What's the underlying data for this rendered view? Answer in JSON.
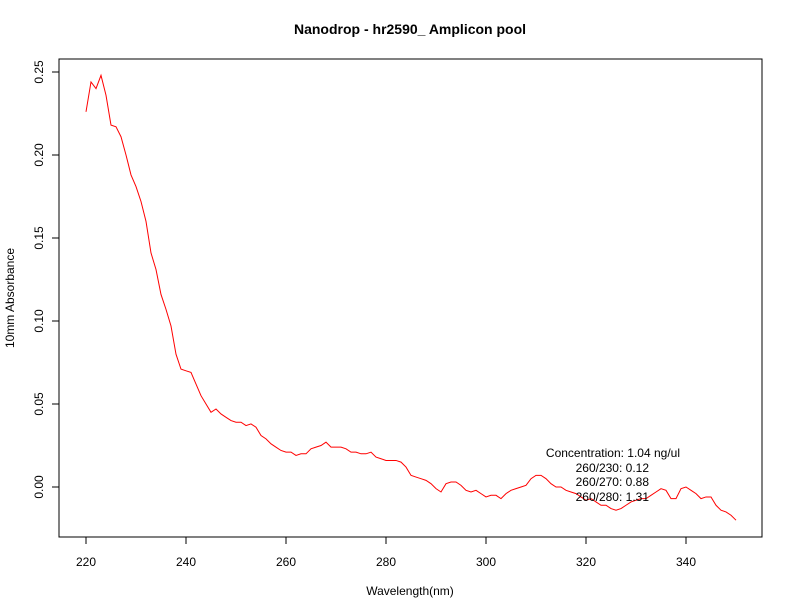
{
  "chart_data": {
    "type": "line",
    "title": "Nanodrop - hr2590_ Amplicon pool",
    "xlabel": "Wavelength(nm)",
    "ylabel": "10mm Absorbance",
    "xlim": [
      220,
      350
    ],
    "ylim": [
      -0.03,
      0.26
    ],
    "xticks": [
      "220",
      "240",
      "260",
      "280",
      "300",
      "320",
      "340"
    ],
    "yticks": [
      "0.00",
      "0.05",
      "0.10",
      "0.15",
      "0.20",
      "0.25"
    ],
    "grid": false,
    "series": [
      {
        "color": "#ff0000",
        "x": [
          220,
          221,
          222,
          223,
          224,
          225,
          226,
          227,
          228,
          229,
          230,
          231,
          232,
          233,
          234,
          235,
          236,
          237,
          238,
          239,
          240,
          241,
          242,
          243,
          244,
          245,
          246,
          247,
          248,
          249,
          250,
          251,
          252,
          253,
          254,
          255,
          256,
          257,
          258,
          259,
          260,
          261,
          262,
          263,
          264,
          265,
          266,
          267,
          268,
          269,
          270,
          271,
          272,
          273,
          274,
          275,
          276,
          277,
          278,
          279,
          280,
          281,
          282,
          283,
          284,
          285,
          286,
          287,
          288,
          289,
          290,
          291,
          292,
          293,
          294,
          295,
          296,
          297,
          298,
          299,
          300,
          301,
          302,
          303,
          304,
          305,
          306,
          307,
          308,
          309,
          310,
          311,
          312,
          313,
          314,
          315,
          316,
          317,
          318,
          319,
          320,
          321,
          322,
          323,
          324,
          325,
          326,
          327,
          328,
          329,
          330,
          331,
          332,
          333,
          334,
          335,
          336,
          337,
          338,
          339,
          340,
          341,
          342,
          343,
          344,
          345,
          346,
          347,
          348,
          349,
          350
        ],
        "values": [
          0.226,
          0.244,
          0.24,
          0.248,
          0.236,
          0.218,
          0.217,
          0.211,
          0.2,
          0.188,
          0.181,
          0.172,
          0.16,
          0.141,
          0.131,
          0.116,
          0.107,
          0.097,
          0.08,
          0.071,
          0.07,
          0.069,
          0.062,
          0.055,
          0.05,
          0.045,
          0.047,
          0.044,
          0.042,
          0.04,
          0.039,
          0.039,
          0.037,
          0.038,
          0.036,
          0.031,
          0.029,
          0.026,
          0.024,
          0.022,
          0.021,
          0.021,
          0.019,
          0.02,
          0.02,
          0.023,
          0.024,
          0.025,
          0.027,
          0.024,
          0.024,
          0.024,
          0.023,
          0.021,
          0.021,
          0.02,
          0.02,
          0.021,
          0.018,
          0.017,
          0.016,
          0.016,
          0.016,
          0.015,
          0.012,
          0.007,
          0.006,
          0.005,
          0.004,
          0.002,
          -0.001,
          -0.003,
          0.002,
          0.003,
          0.003,
          0.001,
          -0.002,
          -0.003,
          -0.002,
          -0.004,
          -0.006,
          -0.005,
          -0.005,
          -0.007,
          -0.004,
          -0.002,
          -0.001,
          0.0,
          0.001,
          0.005,
          0.007,
          0.007,
          0.005,
          0.002,
          0.0,
          0.0,
          -0.002,
          -0.003,
          -0.004,
          -0.006,
          -0.008,
          -0.007,
          -0.009,
          -0.011,
          -0.011,
          -0.013,
          -0.014,
          -0.013,
          -0.011,
          -0.009,
          -0.008,
          -0.007,
          -0.007,
          -0.005,
          -0.003,
          -0.001,
          -0.002,
          -0.007,
          -0.007,
          -0.001,
          0.0,
          -0.002,
          -0.004,
          -0.007,
          -0.006,
          -0.006,
          -0.011,
          -0.014,
          -0.015,
          -0.017,
          -0.02
        ]
      }
    ],
    "annotations": [
      "Concentration: 1.04 ng/ul",
      "260/230: 0.12",
      "260/270: 0.88",
      "260/280: 1.31"
    ]
  }
}
